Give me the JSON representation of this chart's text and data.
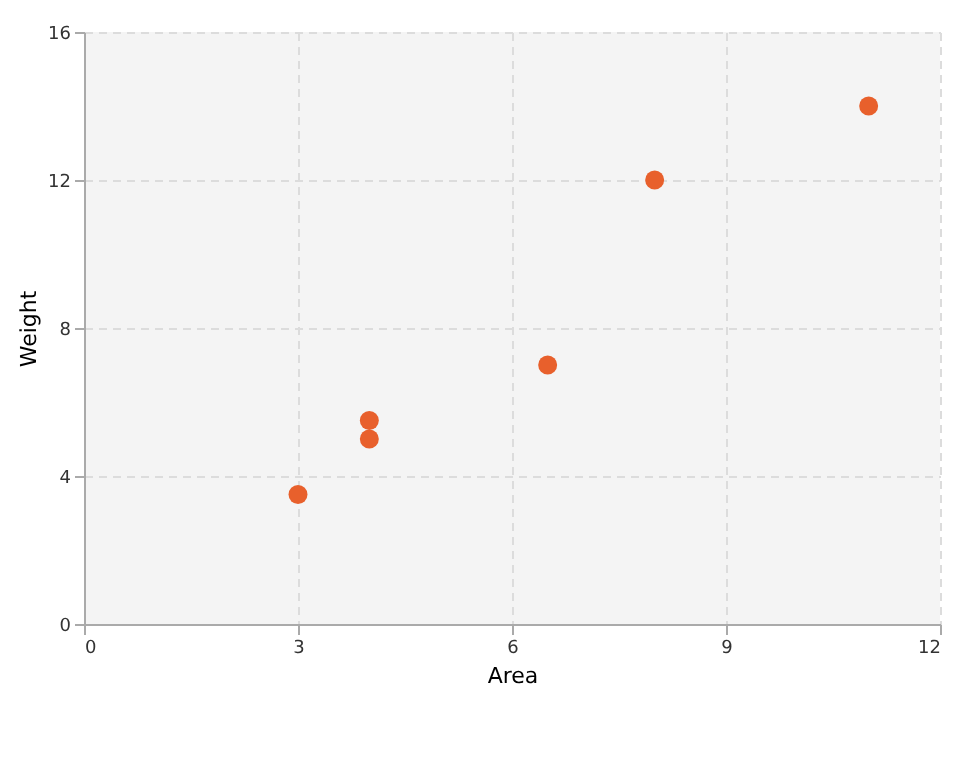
{
  "chart_data": {
    "type": "scatter",
    "xlabel": "Area",
    "ylabel": "Weight",
    "x": [
      3,
      4,
      4,
      6.5,
      8,
      11
    ],
    "series": [
      {
        "color": "#e8602c",
        "values": [
          3.5,
          5.5,
          5,
          7,
          12,
          14
        ]
      }
    ],
    "xlim": [
      0,
      12
    ],
    "xticks": [
      0,
      3,
      6,
      9,
      12
    ],
    "ylim": [
      0,
      16
    ],
    "yticks": [
      0,
      4,
      8,
      12,
      16
    ],
    "grid": true,
    "marker": "circle"
  }
}
